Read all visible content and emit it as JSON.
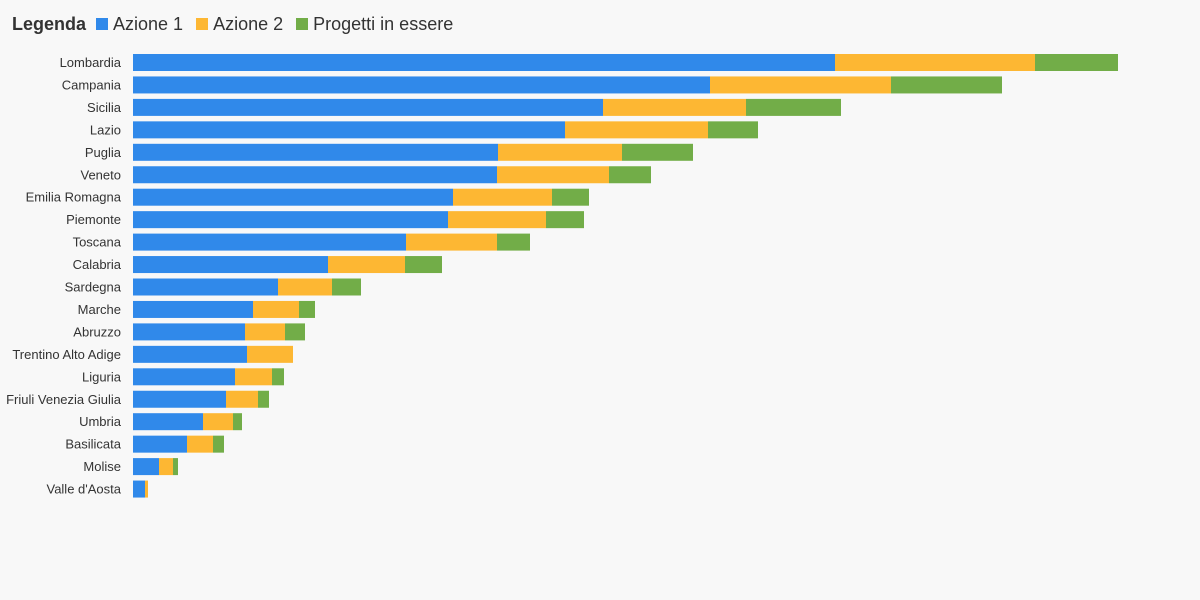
{
  "legend": {
    "title": "Legenda"
  },
  "chart_data": {
    "type": "bar",
    "orientation": "horizontal",
    "stacked": true,
    "categories": [
      "Lombardia",
      "Campania",
      "Sicilia",
      "Lazio",
      "Puglia",
      "Veneto",
      "Emilia Romagna",
      "Piemonte",
      "Toscana",
      "Calabria",
      "Sardegna",
      "Marche",
      "Abruzzo",
      "Trentino Alto Adige",
      "Liguria",
      "Friuli Venezia Giulia",
      "Umbria",
      "Basilicata",
      "Molise",
      "Valle d'Aosta"
    ],
    "series": [
      {
        "name": "Azione 1",
        "color": "#3089ea",
        "values": [
          702,
          577,
          470,
          432,
          365,
          364,
          320,
          315,
          273,
          195,
          145,
          120,
          112,
          114,
          102,
          93,
          70,
          54,
          26,
          12
        ]
      },
      {
        "name": "Azione 2",
        "color": "#fdb733",
        "values": [
          200,
          181,
          143,
          143,
          124,
          112,
          99,
          98,
          91,
          77,
          54,
          46,
          40,
          46,
          37,
          32,
          30,
          26,
          14,
          3
        ]
      },
      {
        "name": "Progetti in essere",
        "color": "#72ad48",
        "values": [
          83,
          111,
          95,
          50,
          71,
          42,
          37,
          38,
          33,
          37,
          29,
          16,
          20,
          0,
          12,
          11,
          9,
          11,
          5,
          0
        ]
      }
    ],
    "xlim": [
      0,
      1000
    ],
    "grid": false,
    "legend_position": "top-left",
    "title": "",
    "xlabel": "",
    "ylabel": ""
  }
}
